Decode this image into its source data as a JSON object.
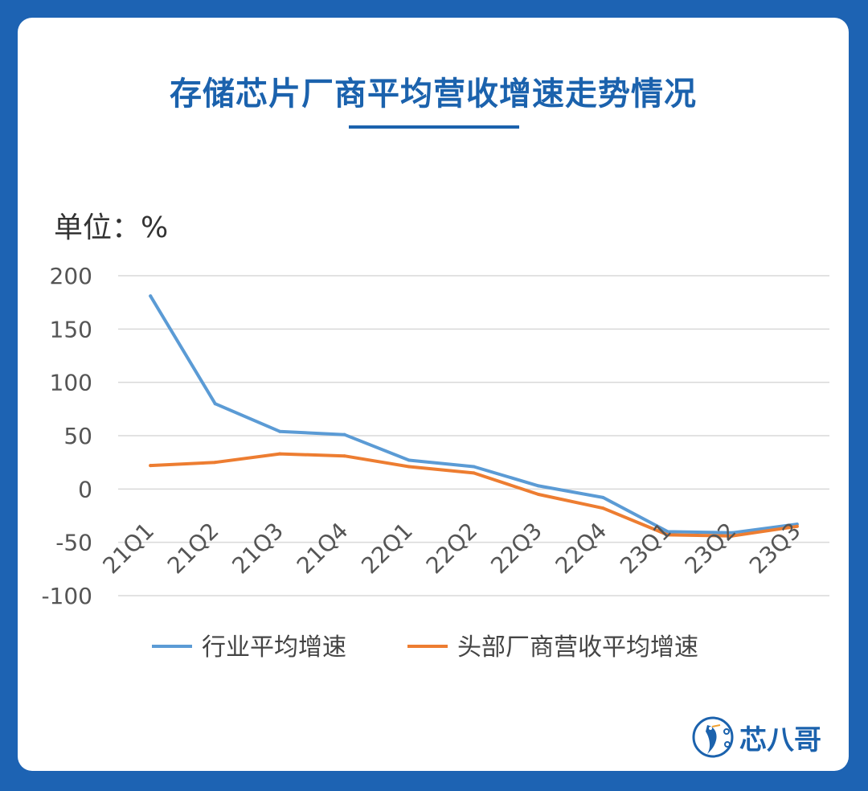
{
  "title": "存储芯片厂商平均营收增速走势情况",
  "unit_label": "单位：%",
  "brand": {
    "name": "芯八哥",
    "color": "#1b62ad"
  },
  "colors": {
    "background": "#1d63b3",
    "industry": "#5b9bd5",
    "leaders": "#ed7d31"
  },
  "chart_data": {
    "type": "line",
    "categories": [
      "21Q1",
      "21Q2",
      "21Q3",
      "21Q4",
      "22Q1",
      "22Q2",
      "22Q3",
      "22Q4",
      "23Q1",
      "23Q2",
      "23Q3"
    ],
    "ylim": [
      -100,
      200
    ],
    "yticks": [
      200,
      150,
      100,
      50,
      0,
      -50,
      -100
    ],
    "grid": true,
    "legend_position": "bottom",
    "series": [
      {
        "name": "行业平均增速",
        "color": "#5b9bd5",
        "values": [
          181,
          80,
          54,
          51,
          27,
          21,
          3,
          -8,
          -40,
          -41,
          -33
        ]
      },
      {
        "name": "头部厂商营收平均增速",
        "color": "#ed7d31",
        "values": [
          22,
          25,
          33,
          31,
          21,
          15,
          -5,
          -18,
          -43,
          -44,
          -35
        ]
      }
    ]
  }
}
